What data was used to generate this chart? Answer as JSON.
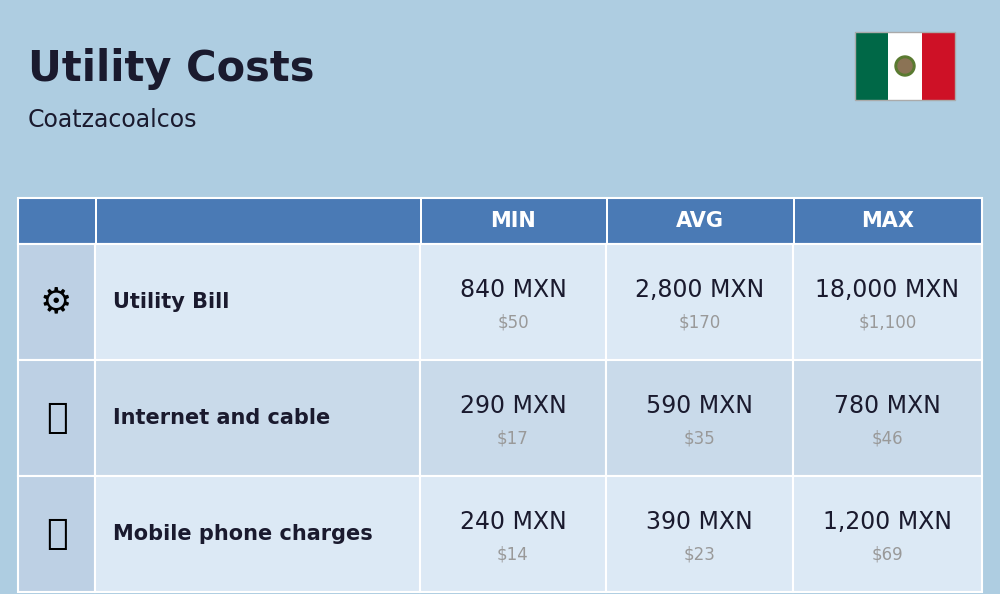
{
  "title": "Utility Costs",
  "subtitle": "Coatzacoalcos",
  "background_color": "#aecde1",
  "header_color": "#4a7ab5",
  "header_text_color": "#ffffff",
  "row_color_odd": "#dce9f5",
  "row_color_even": "#c9daea",
  "icon_col_color": "#bdd0e4",
  "col_headers": [
    "MIN",
    "AVG",
    "MAX"
  ],
  "rows": [
    {
      "label": "Utility Bill",
      "min_mxn": "840 MXN",
      "min_usd": "$50",
      "avg_mxn": "2,800 MXN",
      "avg_usd": "$170",
      "max_mxn": "18,000 MXN",
      "max_usd": "$1,100"
    },
    {
      "label": "Internet and cable",
      "min_mxn": "290 MXN",
      "min_usd": "$17",
      "avg_mxn": "590 MXN",
      "avg_usd": "$35",
      "max_mxn": "780 MXN",
      "max_usd": "$46"
    },
    {
      "label": "Mobile phone charges",
      "min_mxn": "240 MXN",
      "min_usd": "$14",
      "avg_mxn": "390 MXN",
      "avg_usd": "$23",
      "max_mxn": "1,200 MXN",
      "max_usd": "$69"
    }
  ],
  "mxn_fontsize": 17,
  "usd_fontsize": 12,
  "label_fontsize": 15,
  "header_fontsize": 15,
  "title_fontsize": 30,
  "subtitle_fontsize": 17,
  "usd_color": "#999999",
  "text_color": "#1a1a2e",
  "flag_colors": [
    "#006847",
    "#ffffff",
    "#ce1126"
  ]
}
